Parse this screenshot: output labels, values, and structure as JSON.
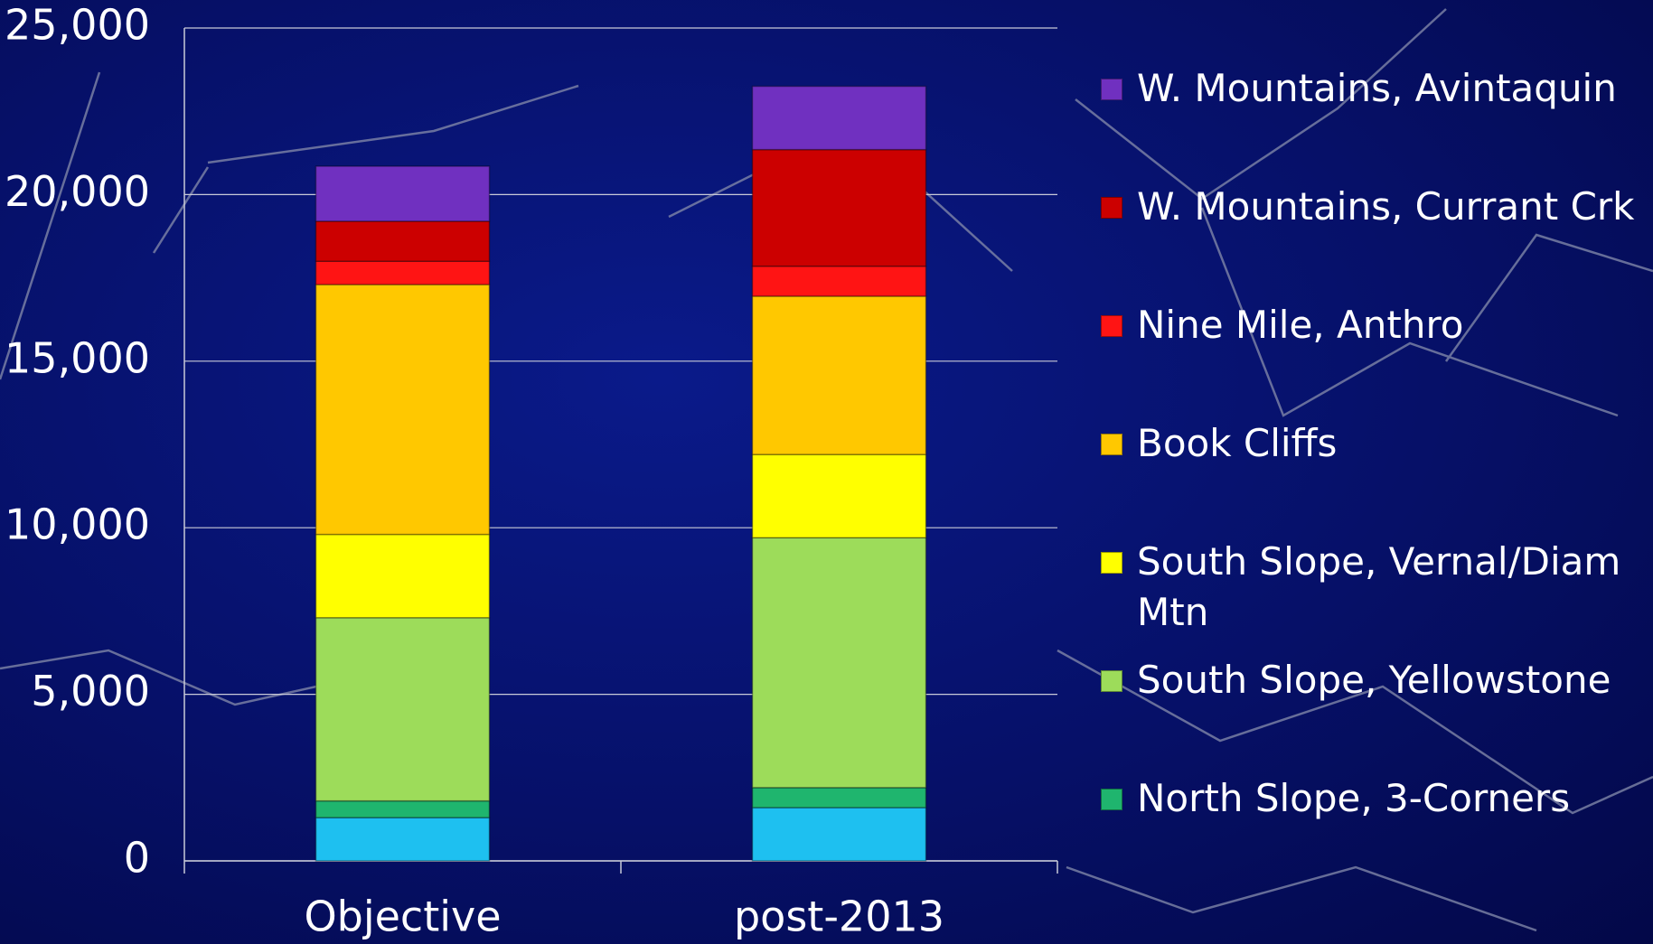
{
  "chart_data": {
    "type": "stacked_bar",
    "categories": [
      "Objective",
      "post-2013"
    ],
    "series": [
      {
        "color": "#1ec0f0",
        "values": [
          1300,
          1600
        ]
      },
      {
        "name": "North Slope, 3-Corners",
        "color": "#1fb56e",
        "values": [
          500,
          600
        ]
      },
      {
        "name": "South Slope, Yellowstone",
        "color": "#9ddc5a",
        "values": [
          5500,
          7500
        ]
      },
      {
        "name": "South Slope, Vernal/Diam Mtn",
        "color": "#ffff00",
        "values": [
          2500,
          2500
        ]
      },
      {
        "name": "Book Cliffs",
        "color": "#ffc800",
        "values": [
          7500,
          4750
        ]
      },
      {
        "name": "Nine Mile, Anthro",
        "color": "#ff1414",
        "values": [
          700,
          900
        ]
      },
      {
        "name": "W. Mountains, Currant Crk",
        "color": "#cc0000",
        "values": [
          1200,
          3500
        ]
      },
      {
        "name": "W. Mountains, Avintaquin",
        "color": "#7030c0",
        "values": [
          1650,
          1900
        ]
      }
    ],
    "ylim": [
      0,
      25000
    ],
    "yticks": [
      0,
      {
        "value": 5000,
        "label": "5,000"
      },
      {
        "value": 10000,
        "label": "10,000"
      },
      {
        "value": 15000,
        "label": "15,000"
      },
      {
        "value": 20000,
        "label": "20,000"
      },
      {
        "value": 25000,
        "label": "25,000"
      }
    ],
    "grid": true
  }
}
